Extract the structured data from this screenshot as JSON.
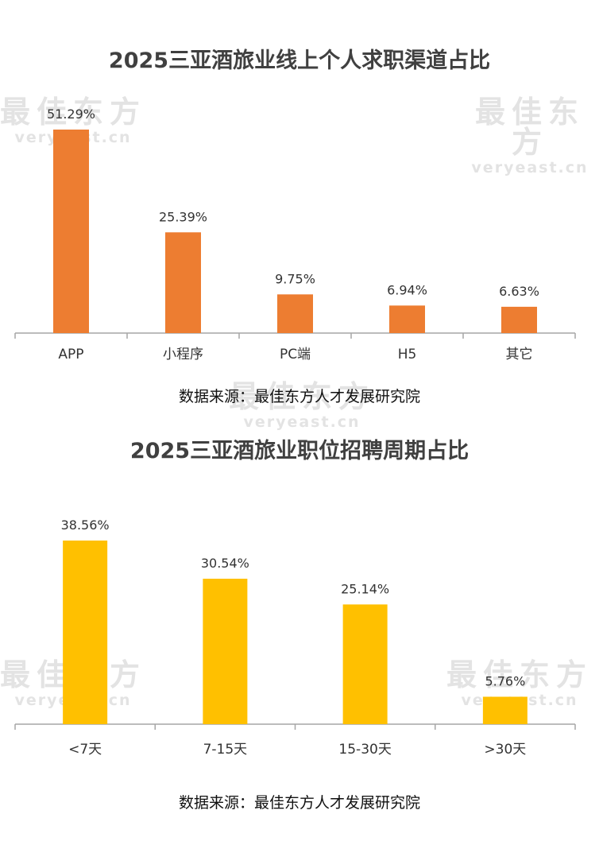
{
  "watermark": {
    "brand": "最佳东方",
    "site": "veryeast.cn"
  },
  "chart_data": [
    {
      "type": "bar",
      "title": "2025三亚酒旅业线上个人求职渠道占比",
      "categories": [
        "APP",
        "小程序",
        "PC端",
        "H5",
        "其它"
      ],
      "values": [
        51.29,
        25.39,
        9.75,
        6.94,
        6.63
      ],
      "value_labels": [
        "51.29%",
        "25.39%",
        "9.75%",
        "6.94%",
        "6.63%"
      ],
      "unit": "%",
      "color": "#ED7D31",
      "ylim": [
        0,
        51.29
      ],
      "grid": false,
      "legend": "none",
      "source": "数据来源：最佳东方人才发展研究院"
    },
    {
      "type": "bar",
      "title": "2025三亚酒旅业职位招聘周期占比",
      "categories": [
        "<7天",
        "7-15天",
        "15-30天",
        ">30天"
      ],
      "values": [
        38.56,
        30.54,
        25.14,
        5.76
      ],
      "value_labels": [
        "38.56%",
        "30.54%",
        "25.14%",
        "5.76%"
      ],
      "unit": "%",
      "color": "#FFC000",
      "ylim": [
        0,
        38.56
      ],
      "grid": false,
      "legend": "none",
      "source": "数据来源：最佳东方人才发展研究院"
    }
  ]
}
